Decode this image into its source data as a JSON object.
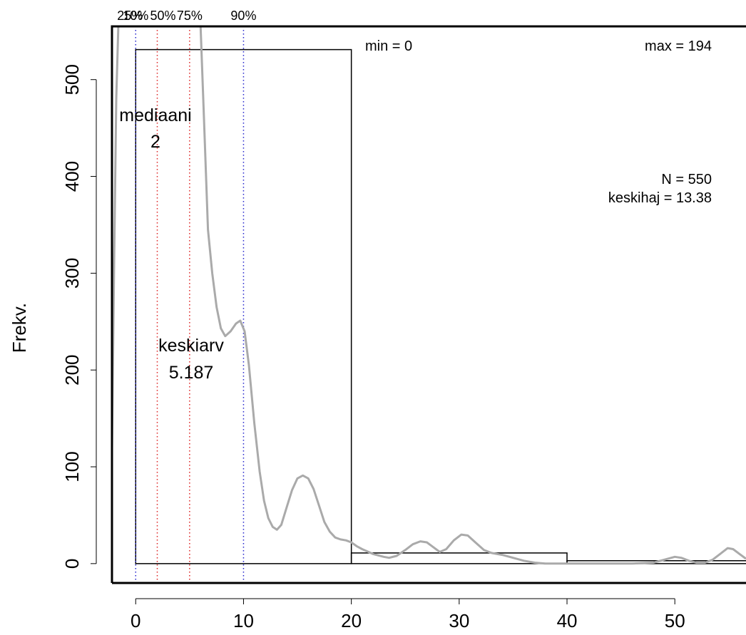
{
  "chart_data": {
    "type": "bar",
    "ylabel": "Frekv.",
    "xlabel": "",
    "title": "",
    "xlim": [
      -2.2,
      56.6
    ],
    "ylim": [
      -20,
      555
    ],
    "x_ticks": [
      0,
      10,
      20,
      30,
      40,
      50
    ],
    "y_ticks": [
      0,
      100,
      200,
      300,
      400,
      500
    ],
    "bins": [
      {
        "from": 0,
        "to": 20,
        "count": 531
      },
      {
        "from": 20,
        "to": 40,
        "count": 11
      },
      {
        "from": 40,
        "to": 60,
        "count": 3
      }
    ],
    "density_curve": {
      "color": "#aaaaaa",
      "points": [
        [
          -2.2,
          120
        ],
        [
          -2.0,
          310
        ],
        [
          -1.8,
          480
        ],
        [
          -1.6,
          560
        ],
        [
          6.0,
          560
        ],
        [
          6.3,
          470
        ],
        [
          6.7,
          345
        ],
        [
          7.1,
          300
        ],
        [
          7.5,
          265
        ],
        [
          7.9,
          243
        ],
        [
          8.3,
          235
        ],
        [
          8.8,
          240
        ],
        [
          9.3,
          248
        ],
        [
          9.7,
          251
        ],
        [
          10.1,
          240
        ],
        [
          10.5,
          205
        ],
        [
          11.0,
          145
        ],
        [
          11.5,
          95
        ],
        [
          11.9,
          65
        ],
        [
          12.3,
          47
        ],
        [
          12.7,
          38
        ],
        [
          13.1,
          35
        ],
        [
          13.5,
          40
        ],
        [
          14.0,
          58
        ],
        [
          14.5,
          76
        ],
        [
          15.0,
          88
        ],
        [
          15.5,
          91
        ],
        [
          16.0,
          88
        ],
        [
          16.5,
          77
        ],
        [
          17.0,
          60
        ],
        [
          17.5,
          43
        ],
        [
          18.0,
          33
        ],
        [
          18.5,
          27
        ],
        [
          19.0,
          25
        ],
        [
          19.5,
          24
        ],
        [
          20.0,
          22
        ],
        [
          20.5,
          18
        ],
        [
          21.0,
          15
        ],
        [
          22.0,
          10
        ],
        [
          23.0,
          7
        ],
        [
          23.5,
          6
        ],
        [
          24.2,
          8
        ],
        [
          25.0,
          14
        ],
        [
          25.7,
          20
        ],
        [
          26.4,
          23
        ],
        [
          27.0,
          22
        ],
        [
          27.6,
          17
        ],
        [
          28.2,
          12
        ],
        [
          28.8,
          15
        ],
        [
          29.5,
          24
        ],
        [
          30.2,
          30
        ],
        [
          30.8,
          29
        ],
        [
          31.5,
          22
        ],
        [
          32.3,
          14
        ],
        [
          33.0,
          11
        ],
        [
          34.0,
          9
        ],
        [
          35.0,
          6
        ],
        [
          36.0,
          3
        ],
        [
          37.0,
          1
        ],
        [
          38.0,
          0
        ],
        [
          40.0,
          0
        ],
        [
          42.0,
          0
        ],
        [
          44.0,
          0
        ],
        [
          46.0,
          0
        ],
        [
          48.0,
          1
        ],
        [
          49.0,
          4
        ],
        [
          50.0,
          7
        ],
        [
          50.6,
          6
        ],
        [
          51.3,
          3
        ],
        [
          52.0,
          1
        ],
        [
          52.8,
          1
        ],
        [
          53.5,
          4
        ],
        [
          54.2,
          10
        ],
        [
          54.9,
          16
        ],
        [
          55.4,
          15
        ],
        [
          56.0,
          10
        ],
        [
          56.6,
          5
        ]
      ]
    },
    "quantile_lines": [
      {
        "label": "10%",
        "value": 0,
        "color": "#2222cc"
      },
      {
        "label": "25%",
        "value": 0,
        "color": "#dd2222"
      },
      {
        "label": "50%",
        "value": 2,
        "color": "#dd2222"
      },
      {
        "label": "75%",
        "value": 5,
        "color": "#dd2222"
      },
      {
        "label": "90%",
        "value": 10,
        "color": "#2222cc"
      }
    ],
    "quantile_label_text": [
      "10%",
      "25%",
      "50%",
      "75%",
      "90%"
    ],
    "annotations": {
      "median_label": "mediaani",
      "median_value": "2",
      "mean_label": "keskiarv",
      "mean_value": "5.187",
      "min_text": "min = 0",
      "max_text": "max = 194",
      "n_text": "N = 550",
      "sd_text": "keskihaj = 13.38"
    },
    "grid": false,
    "legend": "none"
  }
}
